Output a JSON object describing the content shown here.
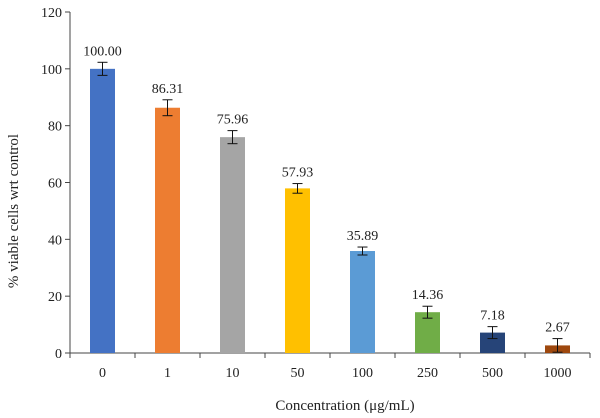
{
  "chart_data": {
    "type": "bar",
    "title": "",
    "xlabel": "Concentration (μg/mL)",
    "ylabel": "% viable cells wrt control",
    "categories": [
      "0",
      "1",
      "10",
      "50",
      "100",
      "250",
      "500",
      "1000"
    ],
    "values": [
      100.0,
      86.31,
      75.96,
      57.93,
      35.89,
      14.36,
      7.18,
      2.67
    ],
    "value_labels": [
      "100.00",
      "86.31",
      "75.96",
      "57.93",
      "35.89",
      "14.36",
      "7.18",
      "2.67"
    ],
    "errors": [
      2.3,
      2.8,
      2.3,
      1.7,
      1.4,
      2.1,
      2.1,
      2.4
    ],
    "bar_colors": [
      "#4472C4",
      "#ED7D31",
      "#A5A5A5",
      "#FFC000",
      "#5B9BD5",
      "#70AD47",
      "#264478",
      "#9E480E"
    ],
    "ylim": [
      0,
      120
    ],
    "yticks": [
      0,
      20,
      40,
      60,
      80,
      100,
      120
    ],
    "grid": false,
    "legend": "none"
  }
}
